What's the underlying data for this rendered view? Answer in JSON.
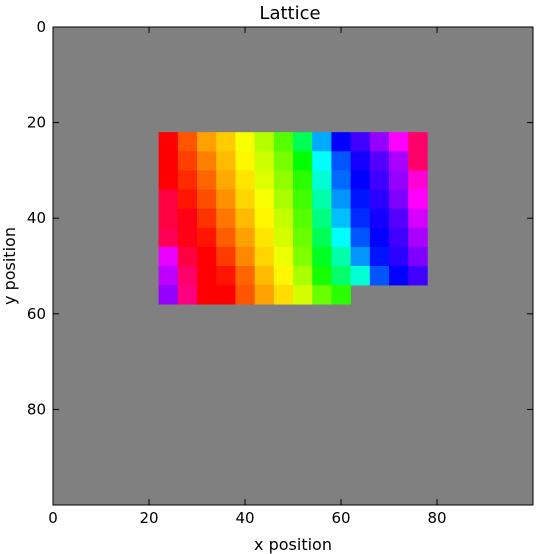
{
  "chart_data": {
    "type": "heatmap",
    "title": "Lattice",
    "xlabel": "x position",
    "ylabel": "y position",
    "xlim": [
      0,
      100
    ],
    "ylim": [
      100,
      0
    ],
    "y_axis_inverted": true,
    "x_ticks": [
      "0",
      "20",
      "40",
      "60",
      "80"
    ],
    "y_ticks": [
      "0",
      "20",
      "40",
      "60",
      "80"
    ],
    "x_tick_values": [
      0,
      20,
      40,
      60,
      80
    ],
    "y_tick_values": [
      0,
      20,
      40,
      60,
      80
    ],
    "background_color": "#808080",
    "cell_size": 4,
    "lattice_origin": [
      22,
      22
    ],
    "colormap": "hsv",
    "row_lengths": [
      14,
      14,
      14,
      14,
      14,
      14,
      14,
      14,
      14,
      14,
      14,
      14,
      14,
      14,
      14,
      14,
      14,
      14,
      14,
      14,
      14,
      14,
      14,
      14,
      14,
      14,
      14,
      14,
      14,
      14,
      14,
      14,
      10,
      10,
      10,
      10
    ],
    "cell_hue_degrees": [
      [
        0,
        20,
        38,
        48,
        62,
        78,
        100,
        140,
        200,
        240,
        255,
        275,
        300,
        335
      ],
      [
        0,
        20,
        38,
        48,
        62,
        78,
        100,
        140,
        200,
        240,
        255,
        275,
        300,
        335
      ],
      [
        0,
        20,
        38,
        48,
        62,
        78,
        100,
        140,
        200,
        240,
        255,
        275,
        300,
        335
      ],
      [
        0,
        20,
        38,
        48,
        62,
        78,
        100,
        140,
        200,
        240,
        255,
        275,
        300,
        335
      ],
      [
        0,
        15,
        30,
        44,
        58,
        72,
        92,
        120,
        180,
        220,
        245,
        260,
        280,
        335
      ],
      [
        0,
        15,
        30,
        44,
        58,
        72,
        92,
        120,
        180,
        220,
        245,
        260,
        280,
        335
      ],
      [
        0,
        15,
        30,
        44,
        58,
        72,
        92,
        120,
        180,
        220,
        245,
        260,
        280,
        335
      ],
      [
        0,
        15,
        30,
        44,
        58,
        72,
        92,
        120,
        180,
        220,
        245,
        260,
        280,
        335
      ],
      [
        0,
        10,
        24,
        40,
        54,
        68,
        86,
        110,
        170,
        215,
        240,
        255,
        275,
        310
      ],
      [
        0,
        10,
        24,
        40,
        54,
        68,
        86,
        110,
        170,
        215,
        240,
        255,
        275,
        310
      ],
      [
        0,
        10,
        24,
        40,
        54,
        68,
        86,
        110,
        170,
        215,
        240,
        255,
        275,
        310
      ],
      [
        0,
        10,
        24,
        40,
        54,
        68,
        86,
        110,
        170,
        215,
        240,
        255,
        275,
        310
      ],
      [
        345,
        5,
        18,
        34,
        50,
        62,
        80,
        105,
        160,
        205,
        235,
        250,
        270,
        300
      ],
      [
        345,
        5,
        18,
        34,
        50,
        62,
        80,
        105,
        160,
        205,
        235,
        250,
        270,
        300
      ],
      [
        345,
        5,
        18,
        34,
        50,
        62,
        80,
        105,
        160,
        205,
        235,
        250,
        270,
        300
      ],
      [
        345,
        5,
        18,
        34,
        50,
        62,
        80,
        105,
        160,
        205,
        235,
        250,
        270,
        300
      ],
      [
        345,
        355,
        12,
        28,
        44,
        58,
        74,
        100,
        150,
        195,
        230,
        245,
        260,
        290
      ],
      [
        345,
        355,
        12,
        28,
        44,
        58,
        74,
        100,
        150,
        195,
        230,
        245,
        260,
        290
      ],
      [
        345,
        355,
        12,
        28,
        44,
        58,
        74,
        100,
        150,
        195,
        230,
        245,
        260,
        290
      ],
      [
        345,
        355,
        12,
        28,
        44,
        58,
        74,
        100,
        150,
        195,
        230,
        245,
        260,
        290
      ],
      [
        340,
        355,
        5,
        22,
        38,
        54,
        70,
        95,
        140,
        180,
        220,
        240,
        255,
        280
      ],
      [
        340,
        355,
        5,
        22,
        38,
        54,
        70,
        95,
        140,
        180,
        220,
        240,
        255,
        280
      ],
      [
        340,
        355,
        5,
        22,
        38,
        54,
        70,
        95,
        140,
        180,
        220,
        240,
        255,
        280
      ],
      [
        340,
        355,
        5,
        22,
        38,
        54,
        70,
        95,
        140,
        180,
        220,
        240,
        255,
        280
      ],
      [
        295,
        345,
        0,
        14,
        32,
        50,
        64,
        90,
        128,
        160,
        205,
        235,
        250,
        270
      ],
      [
        295,
        345,
        0,
        14,
        32,
        50,
        64,
        90,
        128,
        160,
        205,
        235,
        250,
        270
      ],
      [
        295,
        345,
        0,
        14,
        32,
        50,
        64,
        90,
        128,
        160,
        205,
        235,
        250,
        270
      ],
      [
        295,
        345,
        0,
        14,
        32,
        50,
        64,
        90,
        128,
        160,
        205,
        235,
        250,
        270
      ],
      [
        285,
        335,
        0,
        5,
        24,
        44,
        58,
        80,
        115,
        145,
        170,
        220,
        240,
        255
      ],
      [
        285,
        335,
        0,
        5,
        24,
        44,
        58,
        80,
        115,
        145,
        170,
        220,
        240,
        255
      ],
      [
        285,
        335,
        0,
        5,
        24,
        44,
        58,
        80,
        115,
        145,
        170,
        220,
        240,
        255
      ],
      [
        285,
        335,
        0,
        5,
        24,
        44,
        58,
        80,
        115,
        145,
        170,
        220,
        240,
        255
      ],
      [
        275,
        330,
        0,
        0,
        20,
        38,
        52,
        70,
        95,
        110
      ],
      [
        275,
        330,
        0,
        0,
        20,
        38,
        52,
        70,
        95,
        110
      ],
      [
        275,
        330,
        0,
        0,
        20,
        38,
        52,
        70,
        95,
        110
      ],
      [
        275,
        330,
        0,
        0,
        20,
        38,
        52,
        70,
        95,
        110
      ]
    ]
  }
}
